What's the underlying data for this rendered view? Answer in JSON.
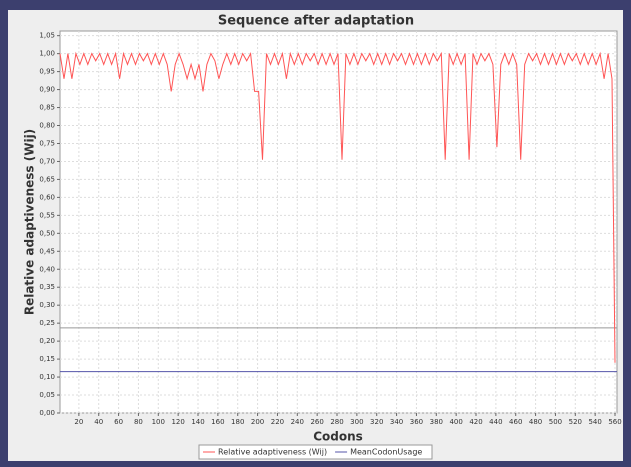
{
  "chart_data": {
    "type": "line",
    "title": "Sequence after adaptation",
    "x_label": "Codons",
    "y_label": "Relative adaptiveness (Wij)",
    "xlim": [
      1,
      562
    ],
    "ylim": [
      0,
      1.063
    ],
    "xticks": [
      20,
      40,
      60,
      80,
      100,
      120,
      140,
      160,
      180,
      200,
      220,
      240,
      260,
      280,
      300,
      320,
      340,
      360,
      380,
      400,
      420,
      440,
      460,
      480,
      500,
      520,
      540,
      560
    ],
    "yticks": [
      {
        "value": 0,
        "label": "0,00"
      },
      {
        "value": 0.05,
        "label": "0,05"
      },
      {
        "value": 0.1,
        "label": "0,10"
      },
      {
        "value": 0.15,
        "label": "0,15"
      },
      {
        "value": 0.2,
        "label": "0,20"
      },
      {
        "value": 0.25,
        "label": "0,25"
      },
      {
        "value": 0.3,
        "label": "0,30"
      },
      {
        "value": 0.35,
        "label": "0,35"
      },
      {
        "value": 0.4,
        "label": "0,40"
      },
      {
        "value": 0.45,
        "label": "0,45"
      },
      {
        "value": 0.5,
        "label": "0,50"
      },
      {
        "value": 0.55,
        "label": "0,55"
      },
      {
        "value": 0.6,
        "label": "0,60"
      },
      {
        "value": 0.65,
        "label": "0,65"
      },
      {
        "value": 0.7,
        "label": "0,70"
      },
      {
        "value": 0.75,
        "label": "0,75"
      },
      {
        "value": 0.8,
        "label": "0,80"
      },
      {
        "value": 0.85,
        "label": "0,85"
      },
      {
        "value": 0.9,
        "label": "0,90"
      },
      {
        "value": 0.95,
        "label": "0,95"
      },
      {
        "value": 1,
        "label": "1,00"
      },
      {
        "value": 1.05,
        "label": "1,05"
      }
    ],
    "grid": true,
    "reference_lines": [
      {
        "value": 0.237,
        "color": "#999999"
      }
    ],
    "series": [
      {
        "name": "Relative adaptiveness (Wij)",
        "color": "#ff5555",
        "x": [
          1,
          5,
          9,
          13,
          17,
          21,
          25,
          29,
          33,
          37,
          41,
          45,
          49,
          53,
          57,
          61,
          65,
          69,
          73,
          77,
          81,
          85,
          89,
          93,
          97,
          101,
          105,
          109,
          113,
          117,
          121,
          125,
          129,
          133,
          137,
          141,
          145,
          149,
          153,
          157,
          161,
          165,
          169,
          173,
          177,
          181,
          185,
          189,
          193,
          197,
          201,
          205,
          209,
          213,
          217,
          221,
          225,
          229,
          233,
          237,
          241,
          245,
          249,
          253,
          257,
          261,
          265,
          269,
          273,
          277,
          281,
          285,
          289,
          293,
          297,
          301,
          305,
          309,
          313,
          317,
          321,
          325,
          329,
          333,
          337,
          341,
          345,
          349,
          353,
          357,
          361,
          365,
          369,
          373,
          377,
          381,
          385,
          389,
          393,
          397,
          401,
          405,
          409,
          413,
          417,
          421,
          425,
          429,
          433,
          437,
          441,
          445,
          449,
          453,
          457,
          461,
          465,
          469,
          473,
          477,
          481,
          485,
          489,
          493,
          497,
          501,
          505,
          509,
          513,
          517,
          521,
          525,
          529,
          533,
          537,
          541,
          545,
          549,
          553,
          557,
          560
        ],
        "values": [
          1,
          0.93,
          1,
          0.93,
          1,
          0.97,
          1,
          0.97,
          1,
          0.98,
          1,
          0.97,
          1,
          0.97,
          1,
          0.93,
          1,
          0.97,
          1,
          0.97,
          1,
          0.98,
          1,
          0.97,
          1,
          0.97,
          1,
          0.97,
          0.895,
          0.97,
          1,
          0.97,
          0.93,
          0.97,
          0.93,
          0.97,
          0.895,
          0.97,
          1,
          0.98,
          0.93,
          0.97,
          1,
          0.97,
          1,
          0.97,
          1,
          0.98,
          1,
          0.895,
          0.895,
          0.705,
          1,
          0.97,
          1,
          0.97,
          1,
          0.93,
          1,
          0.97,
          1,
          0.97,
          1,
          0.98,
          1,
          0.97,
          1,
          0.97,
          1,
          0.97,
          1,
          0.705,
          1,
          0.97,
          1,
          0.97,
          1,
          0.98,
          1,
          0.97,
          1,
          0.97,
          1,
          0.97,
          1,
          0.98,
          1,
          0.97,
          1,
          0.97,
          1,
          0.97,
          1,
          0.97,
          1,
          0.98,
          1,
          0.705,
          1,
          0.97,
          1,
          0.97,
          1,
          0.705,
          1,
          0.97,
          1,
          0.98,
          1,
          0.97,
          0.74,
          0.97,
          1,
          0.97,
          1,
          0.97,
          0.705,
          0.97,
          1,
          0.98,
          1,
          0.97,
          1,
          0.97,
          1,
          0.97,
          1,
          0.97,
          1,
          0.98,
          1,
          0.97,
          1,
          0.97,
          1,
          0.97,
          1,
          0.93,
          1,
          0.93,
          0.14
        ]
      },
      {
        "name": "MeanCodonUsage",
        "color": "#5555aa",
        "value": 0.115
      }
    ]
  }
}
